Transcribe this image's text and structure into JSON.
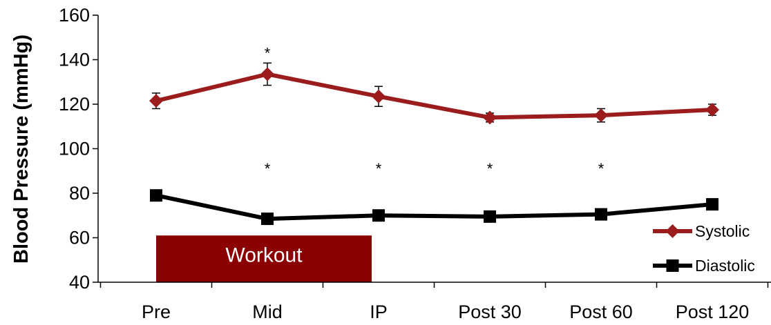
{
  "chart_data": {
    "type": "line",
    "categories": [
      "Pre",
      "Mid",
      "IP",
      "Post 30",
      "Post 60",
      "Post 120"
    ],
    "ylabel": "Blood Pressure (mmHg)",
    "ylim": [
      40,
      160
    ],
    "y_ticks": [
      40,
      60,
      80,
      100,
      120,
      140,
      160
    ],
    "grid": false,
    "legend_position": "bottom-right",
    "series": [
      {
        "name": "Systolic",
        "color": "#9b1c1c",
        "marker": "diamond",
        "values": [
          121.5,
          133.5,
          123.5,
          114,
          115,
          117.5
        ],
        "error": [
          3.5,
          5,
          4.5,
          2,
          3,
          2.5
        ]
      },
      {
        "name": "Diastolic",
        "color": "#000000",
        "marker": "square",
        "values": [
          79,
          68.5,
          70,
          69.5,
          70.5,
          75
        ],
        "error": [
          0,
          0,
          0,
          0,
          0,
          0
        ]
      }
    ],
    "annotations": [
      {
        "text": "*",
        "category": "Mid",
        "y": 145
      },
      {
        "text": "*",
        "category": "Mid",
        "y": 93
      },
      {
        "text": "*",
        "category": "IP",
        "y": 93
      },
      {
        "text": "*",
        "category": "Post 30",
        "y": 93
      },
      {
        "text": "*",
        "category": "Post 60",
        "y": 93
      }
    ],
    "workout_box": {
      "label": "Workout",
      "color": "#8b0000",
      "x_start": "Pre",
      "x_end": "IP",
      "y_range": [
        40,
        61
      ]
    }
  }
}
